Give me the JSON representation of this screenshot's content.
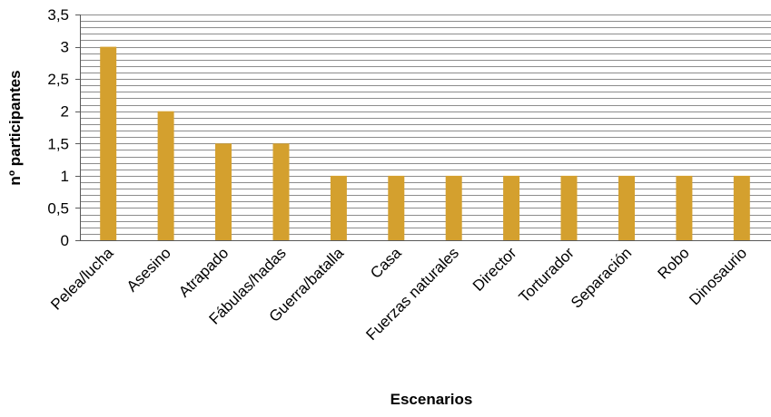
{
  "chart_data": {
    "type": "bar",
    "categories": [
      "Pelea/lucha",
      "Asesino",
      "Atrapado",
      "Fábulas/hadas",
      "Guerra/batalla",
      "Casa",
      "Fuerzas naturales",
      "Director",
      "Torturador",
      "Separación",
      "Robo",
      "Dinosaurio"
    ],
    "values": [
      3,
      2,
      1.5,
      1.5,
      1,
      1,
      1,
      1,
      1,
      1,
      1,
      1
    ],
    "y_ticks": [
      "0",
      "0,5",
      "1",
      "1,5",
      "2",
      "2,5",
      "3",
      "3,5"
    ],
    "ylim": [
      0,
      3.5
    ],
    "minor_gridline_step": 0.1,
    "xlabel": "Escenarios",
    "ylabel": "nº participantes",
    "bar_color": "#D4A02E",
    "grid_color": "#8C8C8C",
    "grid": true,
    "legend": "none"
  }
}
